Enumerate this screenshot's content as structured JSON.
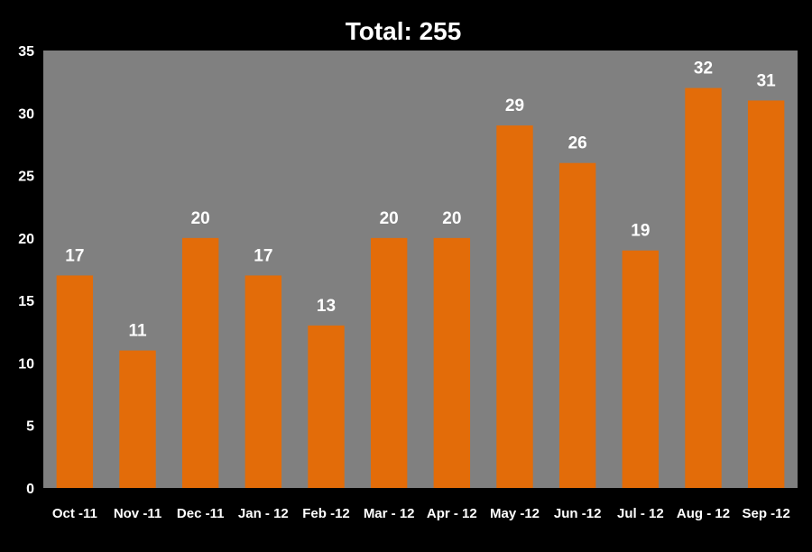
{
  "chart_data": {
    "type": "bar",
    "title": "Total: 255",
    "xlabel": "",
    "ylabel": "",
    "categories": [
      "Oct -11",
      "Nov -11",
      "Dec -11",
      "Jan - 12",
      "Feb -12",
      "Mar - 12",
      "Apr - 12",
      "May -12",
      "Jun -12",
      "Jul - 12",
      "Aug - 12",
      "Sep -12"
    ],
    "values": [
      17,
      11,
      20,
      17,
      13,
      20,
      20,
      29,
      26,
      19,
      32,
      31
    ],
    "ylim": [
      0,
      35
    ],
    "yticks": [
      0,
      5,
      10,
      15,
      20,
      25,
      30,
      35
    ],
    "grid": false,
    "legend": "none",
    "data_labels": true,
    "colors": {
      "bar": "#E36C09",
      "plot_background": "#808080",
      "page_background": "#000000",
      "text": "#ffffff"
    }
  }
}
